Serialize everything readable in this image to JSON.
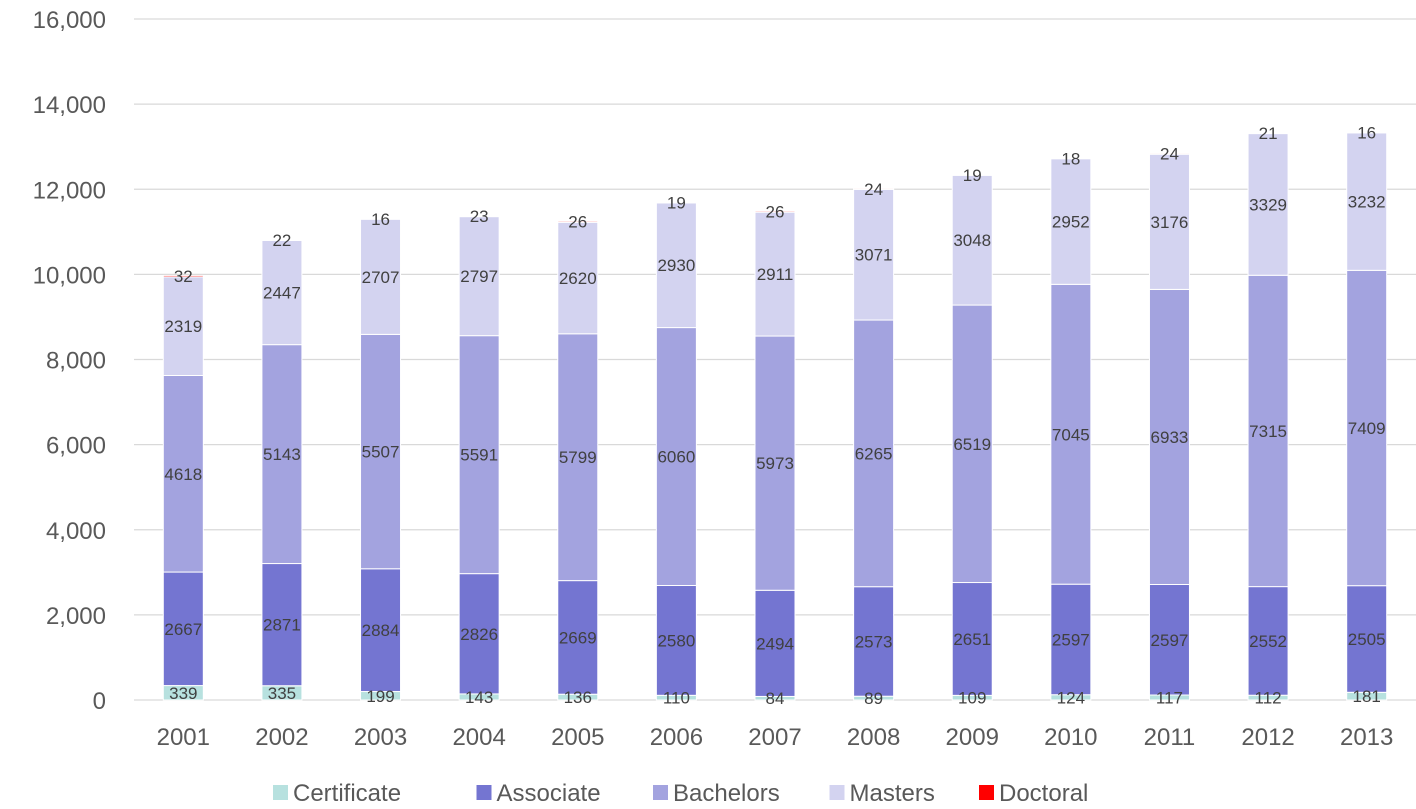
{
  "chart_data": {
    "type": "bar",
    "stacked": true,
    "title": "",
    "xlabel": "",
    "ylabel": "",
    "ylim": [
      0,
      16000
    ],
    "yticks": [
      "0",
      "2,000",
      "4,000",
      "6,000",
      "8,000",
      "10,000",
      "12,000",
      "14,000",
      "16,000"
    ],
    "grid": true,
    "legend_position": "bottom",
    "categories": [
      "2001",
      "2002",
      "2003",
      "2004",
      "2005",
      "2006",
      "2007",
      "2008",
      "2009",
      "2010",
      "2011",
      "2012",
      "2013"
    ],
    "series": [
      {
        "name": "Certificate",
        "color": "#b7e1df",
        "values": [
          339,
          335,
          199,
          143,
          136,
          110,
          84,
          89,
          109,
          124,
          117,
          112,
          181
        ]
      },
      {
        "name": "Associate",
        "color": "#7475d1",
        "values": [
          2667,
          2871,
          2884,
          2826,
          2669,
          2580,
          2494,
          2573,
          2651,
          2597,
          2597,
          2552,
          2505
        ]
      },
      {
        "name": "Bachelors",
        "color": "#a3a3df",
        "values": [
          4618,
          5143,
          5507,
          5591,
          5799,
          6060,
          5973,
          6265,
          6519,
          7045,
          6933,
          7315,
          7409
        ]
      },
      {
        "name": "Masters",
        "color": "#d3d3f0",
        "values": [
          2319,
          2447,
          2707,
          2797,
          2620,
          2930,
          2911,
          3071,
          3048,
          2952,
          3176,
          3329,
          3232
        ]
      },
      {
        "name": "Doctoral",
        "color": "#ff0000",
        "values": [
          32,
          22,
          16,
          23,
          26,
          19,
          26,
          24,
          19,
          18,
          24,
          21,
          16
        ]
      }
    ]
  }
}
